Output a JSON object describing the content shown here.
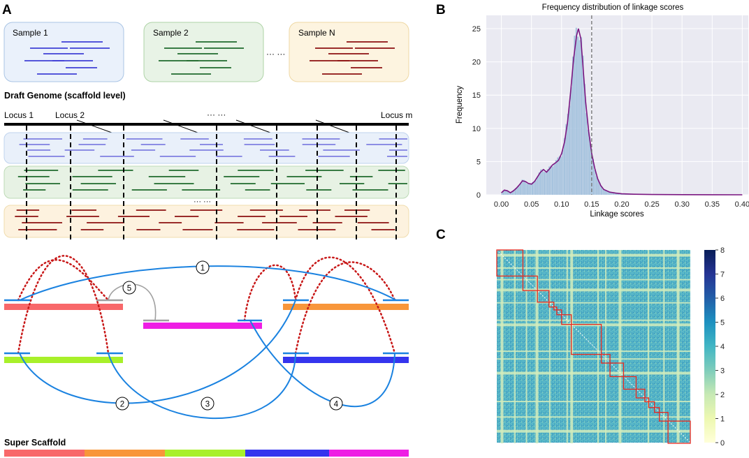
{
  "panels": {
    "a": {
      "letter": "A",
      "samples": [
        {
          "label": "Sample 1",
          "fill": "#eaf1fb",
          "stroke": "#a9c4e4",
          "read_color": "#3f3fd6"
        },
        {
          "label": "Sample 2",
          "fill": "#e8f3e6",
          "stroke": "#aed3a6",
          "read_color": "#1f6a2c"
        },
        {
          "label": "Sample N",
          "fill": "#fdf4e0",
          "stroke": "#eed7a3",
          "read_color": "#8c1010"
        }
      ],
      "ellipsis": "··· ···",
      "draft_title": "Draft Genome (scaffold level)",
      "loci": {
        "first": "Locus 1",
        "second": "Locus 2",
        "last": "Locus m",
        "middle": "··· ···"
      },
      "rows_ellipsis": "··· ···",
      "lane_colors": {
        "blue_lane": "#e9f0fa",
        "green_lane": "#e7f2e4",
        "orange_lane": "#fdf2df",
        "blue_read": "#7f7fe0",
        "green_read": "#1f6a2c",
        "red_read": "#8c1010"
      },
      "links": [
        "1",
        "2",
        "3",
        "4",
        "5"
      ],
      "contig_colors": {
        "red": "#f8686a",
        "orange": "#f8963a",
        "magenta": "#ee1ee4",
        "lime": "#a8f02a",
        "blue": "#3535ee",
        "link": "#1a82e0",
        "gray": "#a0a0a0",
        "dotted": "#c81818"
      },
      "super_title": "Super Scaffold"
    },
    "b": {
      "letter": "B",
      "chart_data": {
        "type": "histogram",
        "title": "Frequency distribution of linkage scores",
        "xlabel": "Linkage scores",
        "ylabel": "Frequency",
        "xlim": [
          -0.025,
          0.41
        ],
        "ylim": [
          0,
          27
        ],
        "xticks": [
          0.0,
          0.05,
          0.1,
          0.15,
          0.2,
          0.25,
          0.3,
          0.35,
          0.4
        ],
        "xtick_labels": [
          "0.00",
          "0.05",
          "0.10",
          "0.15",
          "0.20",
          "0.25",
          "0.30",
          "0.35",
          "0.40"
        ],
        "yticks": [
          0,
          5,
          10,
          15,
          20,
          25
        ],
        "ytick_labels": [
          "0",
          "5",
          "10",
          "15",
          "20",
          "25"
        ],
        "threshold": 0.15,
        "kde": [
          [
            0.0,
            0.3
          ],
          [
            0.005,
            0.7
          ],
          [
            0.01,
            0.6
          ],
          [
            0.015,
            0.3
          ],
          [
            0.02,
            0.6
          ],
          [
            0.025,
            1.0
          ],
          [
            0.03,
            1.5
          ],
          [
            0.035,
            2.1
          ],
          [
            0.04,
            2.0
          ],
          [
            0.045,
            1.7
          ],
          [
            0.05,
            1.6
          ],
          [
            0.055,
            2.0
          ],
          [
            0.06,
            2.7
          ],
          [
            0.065,
            3.4
          ],
          [
            0.07,
            3.8
          ],
          [
            0.075,
            3.4
          ],
          [
            0.08,
            3.9
          ],
          [
            0.085,
            4.5
          ],
          [
            0.09,
            4.8
          ],
          [
            0.095,
            5.2
          ],
          [
            0.1,
            6.2
          ],
          [
            0.105,
            8.0
          ],
          [
            0.11,
            11.0
          ],
          [
            0.115,
            15.5
          ],
          [
            0.12,
            20.5
          ],
          [
            0.125,
            24.0
          ],
          [
            0.128,
            25.0
          ],
          [
            0.132,
            23.5
          ],
          [
            0.135,
            20.0
          ],
          [
            0.14,
            14.0
          ],
          [
            0.145,
            9.5
          ],
          [
            0.15,
            6.2
          ],
          [
            0.155,
            4.0
          ],
          [
            0.16,
            2.4
          ],
          [
            0.165,
            1.4
          ],
          [
            0.17,
            0.8
          ],
          [
            0.18,
            0.4
          ],
          [
            0.19,
            0.25
          ],
          [
            0.2,
            0.15
          ],
          [
            0.22,
            0.08
          ],
          [
            0.25,
            0.04
          ],
          [
            0.3,
            0.02
          ],
          [
            0.4,
            0.0
          ]
        ],
        "bar_color": "#a6c3de",
        "kde_color": "#7a1680",
        "threshold_color": "#666666",
        "bg_color": "#eaeaf2"
      }
    },
    "c": {
      "letter": "C",
      "chart_data": {
        "type": "heatmap",
        "colorbar_ticks": [
          "0",
          "1",
          "2",
          "3",
          "4",
          "5",
          "6",
          "7",
          "8"
        ],
        "vmin": 0,
        "vmax": 8,
        "box_color": "#e8281f",
        "cell_color": "#5bb8c8",
        "stripe_color": "#d4ecbc",
        "cmap": [
          "#ffffd9",
          "#edf8b1",
          "#c7e9b4",
          "#7fcdbb",
          "#41b6c4",
          "#1d91c0",
          "#225ea8",
          "#253494",
          "#081d58"
        ]
      }
    }
  }
}
